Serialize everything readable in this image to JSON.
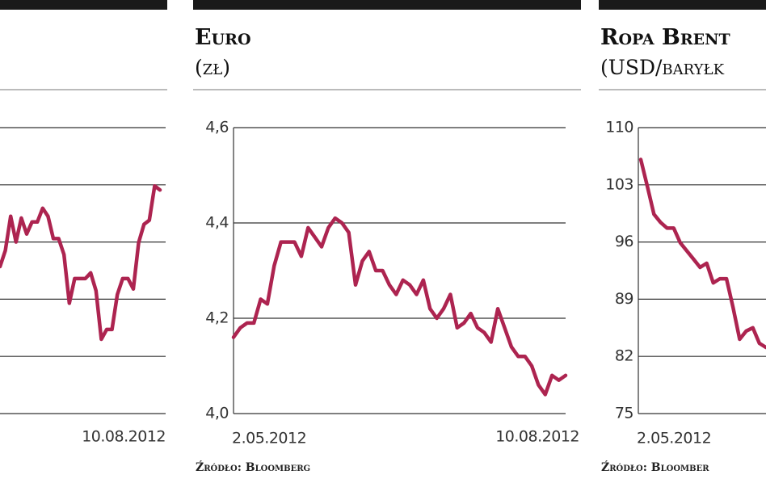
{
  "chart_data": [
    {
      "type": "line",
      "color": "#ad2450",
      "ylim": [
        0,
        5
      ],
      "x_end_label": "10.08.2012",
      "values": [
        2.57,
        2.85,
        3.45,
        3.0,
        3.42,
        3.14,
        3.35,
        3.35,
        3.59,
        3.45,
        3.06,
        3.06,
        2.78,
        1.93,
        2.36,
        2.36,
        2.36,
        2.46,
        2.15,
        1.3,
        1.47,
        1.47,
        2.08,
        2.36,
        2.36,
        2.18,
        2.99,
        3.31,
        3.38,
        3.98,
        3.91
      ]
    },
    {
      "type": "line",
      "title": "Euro",
      "subtitle": "(zł)",
      "color": "#ad2450",
      "x_start_label": "2.05.2012",
      "x_end_label": "10.08.2012",
      "source": "Źródło: Bloomberg",
      "ylim": [
        4.0,
        4.6
      ],
      "yticks": [
        {
          "value": 4.0,
          "label": "4,0"
        },
        {
          "value": 4.2,
          "label": "4,2"
        },
        {
          "value": 4.4,
          "label": "4,4"
        },
        {
          "value": 4.6,
          "label": "4,6"
        }
      ],
      "values": [
        4.16,
        4.18,
        4.19,
        4.19,
        4.24,
        4.23,
        4.31,
        4.36,
        4.36,
        4.36,
        4.33,
        4.39,
        4.37,
        4.35,
        4.39,
        4.41,
        4.4,
        4.38,
        4.27,
        4.32,
        4.34,
        4.3,
        4.3,
        4.27,
        4.25,
        4.28,
        4.27,
        4.25,
        4.28,
        4.22,
        4.2,
        4.22,
        4.25,
        4.18,
        4.19,
        4.21,
        4.18,
        4.17,
        4.15,
        4.22,
        4.18,
        4.14,
        4.12,
        4.12,
        4.1,
        4.06,
        4.04,
        4.08,
        4.07,
        4.08
      ]
    },
    {
      "type": "line",
      "title": "Ropa Brent",
      "subtitle": "(USD/baryłk",
      "color": "#ad2450",
      "x_start_label": "2.05.2012",
      "source": "Źródło: Bloomber",
      "ylim": [
        75,
        110
      ],
      "yticks": [
        75,
        82,
        89,
        96,
        103,
        110
      ],
      "values": [
        106.1,
        102.8,
        99.4,
        98.4,
        97.7,
        97.7,
        95.9,
        94.9,
        93.9,
        92.9,
        93.4,
        91.0,
        91.5,
        91.5,
        88.0,
        84.1,
        85.1,
        85.5,
        83.6,
        83.1
      ]
    }
  ]
}
